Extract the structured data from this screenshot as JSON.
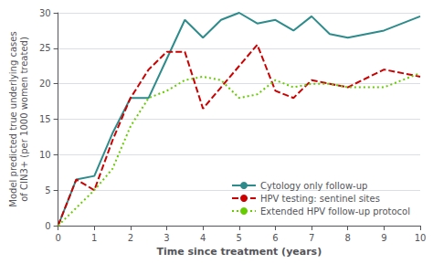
{
  "chart_data": {
    "type": "line",
    "xlabel": "Time since treatment (years)",
    "ylabel": "Model predicted true underlying cases\nof CIN3+ (per 1000 women treated)",
    "xlim": [
      0,
      10
    ],
    "ylim": [
      0,
      30
    ],
    "xticks": [
      0,
      1,
      2,
      3,
      4,
      5,
      6,
      7,
      8,
      9,
      10
    ],
    "yticks": [
      0,
      5,
      10,
      15,
      20,
      25,
      30
    ],
    "grid": true,
    "legend": "lower right",
    "series": [
      {
        "name": "Cytology only follow-up",
        "color": "#2e8b8b",
        "line_style": "solid",
        "x": [
          0,
          0.5,
          1.0,
          1.5,
          2.0,
          2.5,
          3.0,
          3.5,
          4.0,
          4.5,
          5.0,
          5.5,
          6.0,
          6.5,
          7.0,
          7.5,
          8.0,
          9.0,
          10.0
        ],
        "values": [
          0,
          6.5,
          7.0,
          13.0,
          18.0,
          18.0,
          23.5,
          29.0,
          26.5,
          29.0,
          30.0,
          28.5,
          29.0,
          27.5,
          29.5,
          27.0,
          26.5,
          27.5,
          29.5
        ]
      },
      {
        "name": "HPV testing: sentinel sites",
        "color": "#cc0000",
        "line_style": "dashed",
        "x": [
          0,
          0.5,
          1.0,
          1.5,
          2.0,
          2.5,
          3.0,
          3.5,
          4.0,
          4.5,
          5.0,
          5.5,
          6.0,
          6.5,
          7.0,
          7.5,
          8.0,
          9.0,
          10.0
        ],
        "values": [
          0,
          6.5,
          5.0,
          12.0,
          18.0,
          22.0,
          24.5,
          24.5,
          16.5,
          19.5,
          22.5,
          25.5,
          19.0,
          18.0,
          20.5,
          20.0,
          19.5,
          22.0,
          21.0
        ]
      },
      {
        "name": "Extended HPV follow-up protocol",
        "color": "#66cc00",
        "line_style": "dotted",
        "x": [
          0,
          1.0,
          1.5,
          2.0,
          2.5,
          3.0,
          3.5,
          4.0,
          4.5,
          5.0,
          5.5,
          6.0,
          6.5,
          7.0,
          7.5,
          8.0,
          9.0,
          10.0
        ],
        "values": [
          0,
          5.0,
          8.0,
          14.0,
          18.0,
          19.0,
          20.5,
          21.0,
          20.5,
          18.0,
          18.5,
          20.5,
          19.5,
          20.0,
          20.0,
          19.5,
          19.5,
          21.5
        ]
      }
    ]
  }
}
